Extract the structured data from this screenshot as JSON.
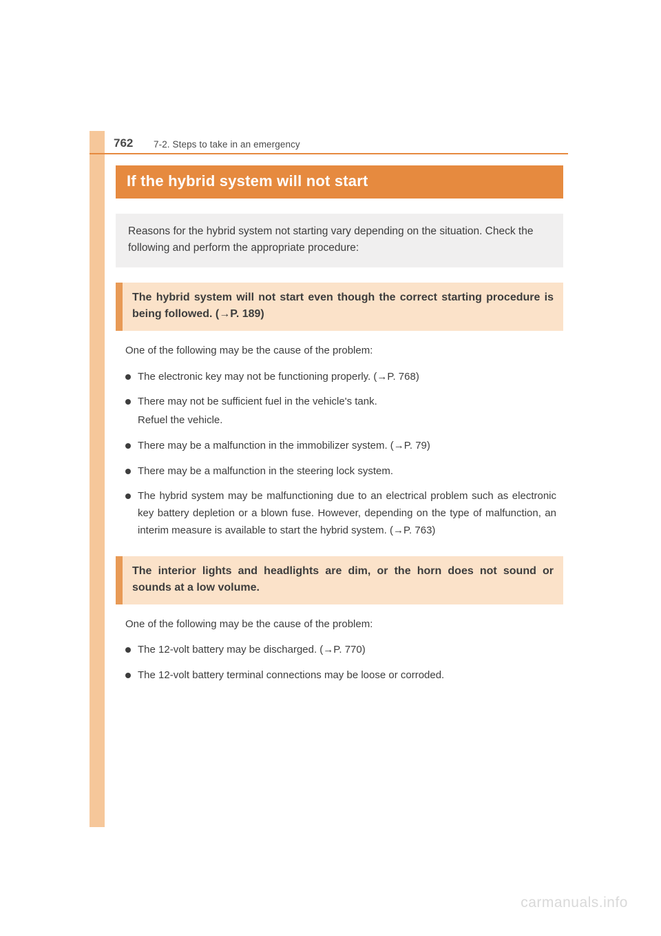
{
  "colors": {
    "accent": "#e68a3f",
    "accent_light": "#f6c79a",
    "section_bg": "#fbe2c9",
    "section_border": "#e89a56",
    "intro_bg": "#f0efef",
    "text": "#3d3d3d",
    "watermark": "#d9d9d9"
  },
  "page_number": "762",
  "breadcrumb": "7-2. Steps to take in an emergency",
  "title": "If the hybrid system will not start",
  "intro": "Reasons for the hybrid system not starting vary depending on the situation. Check the following and perform the appropriate procedure:",
  "sections": [
    {
      "header": "The hybrid system will not start even though the correct starting procedure is being followed. (→P. 189)",
      "lead": "One of the following may be the cause of the problem:",
      "bullets": [
        {
          "text": "The electronic key may not be functioning properly. (→P. 768)"
        },
        {
          "text": "There may not be sufficient fuel in the vehicle's tank.",
          "sub": "Refuel the vehicle."
        },
        {
          "text": "There may be a malfunction in the immobilizer system. (→P. 79)"
        },
        {
          "text": "There may be a malfunction in the steering lock system."
        },
        {
          "text": "The hybrid system may be malfunctioning due to an electrical problem such as electronic key battery depletion or a blown fuse. However, depending on the type of malfunction, an interim measure is available to start the hybrid system. (→P. 763)"
        }
      ]
    },
    {
      "header": "The interior lights and headlights are dim, or the horn does not sound or sounds at a low volume.",
      "lead": "One of the following may be the cause of the problem:",
      "bullets": [
        {
          "text": "The 12-volt battery may be discharged. (→P. 770)"
        },
        {
          "text": "The 12-volt battery terminal connections may be loose or corroded."
        }
      ]
    }
  ],
  "watermark": "carmanuals.info"
}
